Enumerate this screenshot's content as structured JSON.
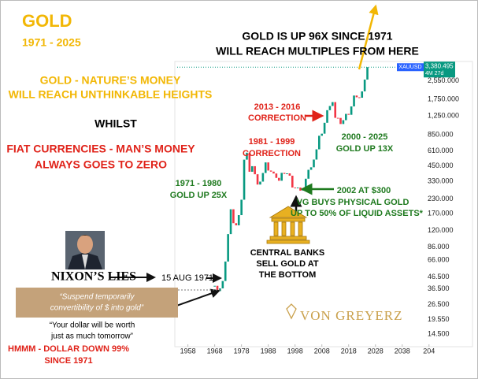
{
  "chart_data": {
    "type": "candlestick",
    "title": "GOLD",
    "subtitle": "1971 - 2025",
    "symbol": "XAUUSD",
    "last_price": {
      "value": 3380.495,
      "label": "3,380.495"
    },
    "countdown": "4M 27d",
    "log_scale": true,
    "up_color": "#089981",
    "down_color": "#f23645",
    "x": [
      1968,
      1969,
      1970,
      1971,
      1972,
      1973,
      1974,
      1975,
      1976,
      1977,
      1978,
      1979,
      1980,
      1981,
      1982,
      1983,
      1984,
      1985,
      1986,
      1987,
      1988,
      1989,
      1990,
      1991,
      1992,
      1993,
      1994,
      1995,
      1996,
      1997,
      1998,
      1999,
      2000,
      2001,
      2002,
      2003,
      2004,
      2005,
      2006,
      2007,
      2008,
      2009,
      2010,
      2011,
      2012,
      2013,
      2014,
      2015,
      2016,
      2017,
      2018,
      2019,
      2020,
      2021,
      2022,
      2023,
      2024,
      2025
    ],
    "values": [
      39,
      35,
      37,
      43,
      64,
      112,
      186,
      140,
      134,
      165,
      226,
      512,
      590,
      400,
      448,
      380,
      308,
      327,
      390,
      484,
      410,
      401,
      386,
      353,
      333,
      391,
      383,
      387,
      369,
      290,
      288,
      290,
      272,
      277,
      347,
      416,
      438,
      513,
      632,
      834,
      870,
      1087,
      1405,
      1531,
      1657,
      1202,
      1199,
      1060,
      1146,
      1303,
      1279,
      1517,
      1895,
      1829,
      1812,
      2063,
      2625,
      3380
    ],
    "xlim": [
      1954,
      2051
    ],
    "xticks": [
      1958,
      1968,
      1978,
      1988,
      1998,
      2008,
      2018,
      2028,
      2038,
      {
        "value": 2048,
        "label": "204"
      }
    ],
    "ylim": [
      12,
      7000
    ],
    "yticks": [
      {
        "value": 2550,
        "label": "2,550.000"
      },
      {
        "value": 1750,
        "label": "1,750.000"
      },
      {
        "value": 1250,
        "label": "1,250.000"
      },
      {
        "value": 850,
        "label": "850.000"
      },
      {
        "value": 610,
        "label": "610.000"
      },
      {
        "value": 450,
        "label": "450.000"
      },
      {
        "value": 330,
        "label": "330.000"
      },
      {
        "value": 230,
        "label": "230.000"
      },
      {
        "value": 170,
        "label": "170.000"
      },
      {
        "value": 120,
        "label": "120.000"
      },
      {
        "value": 86,
        "label": "86.000"
      },
      {
        "value": 66,
        "label": "66.000"
      },
      {
        "value": 46.5,
        "label": "46.500"
      },
      {
        "value": 36.5,
        "label": "36.500"
      },
      {
        "value": 26.5,
        "label": "26.500"
      },
      {
        "value": 19.55,
        "label": "19.550"
      },
      {
        "value": 14.5,
        "label": "14.500"
      }
    ],
    "headline": [
      "GOLD IS UP 96X SINCE 1971",
      "WILL REACH MULTIPLES FROM HERE"
    ],
    "nature": [
      "GOLD - NATURE’S MONEY",
      "WILL REACH UNTHINKABLE HEIGHTS"
    ],
    "whilst": "WHILST",
    "fiat": [
      "FIAT CURRENCIES - MAN’S MONEY",
      "ALWAYS GOES TO ZERO"
    ],
    "correction_2013": [
      "2013 - 2016",
      "CORRECTION"
    ],
    "up_2000": [
      "2000 - 2025",
      "GOLD UP 13X"
    ],
    "correction_1981": [
      "1981 - 1999",
      "CORRECTION"
    ],
    "up_1971": [
      "1971 - 1980",
      "GOLD UP 25X"
    ],
    "vg_2002": [
      "2002 AT $300",
      "VG BUYS PHYSICAL GOLD",
      "UP TO 50% OF LIQUID ASSETS*"
    ],
    "central_banks": [
      "CENTRAL BANKS",
      "SELL GOLD AT",
      "THE BOTTOM"
    ],
    "nixon": "NIXON’S LIES",
    "aug_1971": "15 AUG 1971",
    "quote1": [
      "“Suspend temporarily",
      "convertibility of $ into gold”"
    ],
    "quote2": [
      "“Your dollar will be worth",
      "just as much tomorrow”"
    ],
    "dollar": [
      "HMMM - DOLLAR DOWN 99%",
      "SINCE 1971"
    ],
    "brand": "VON GREYERZ"
  }
}
